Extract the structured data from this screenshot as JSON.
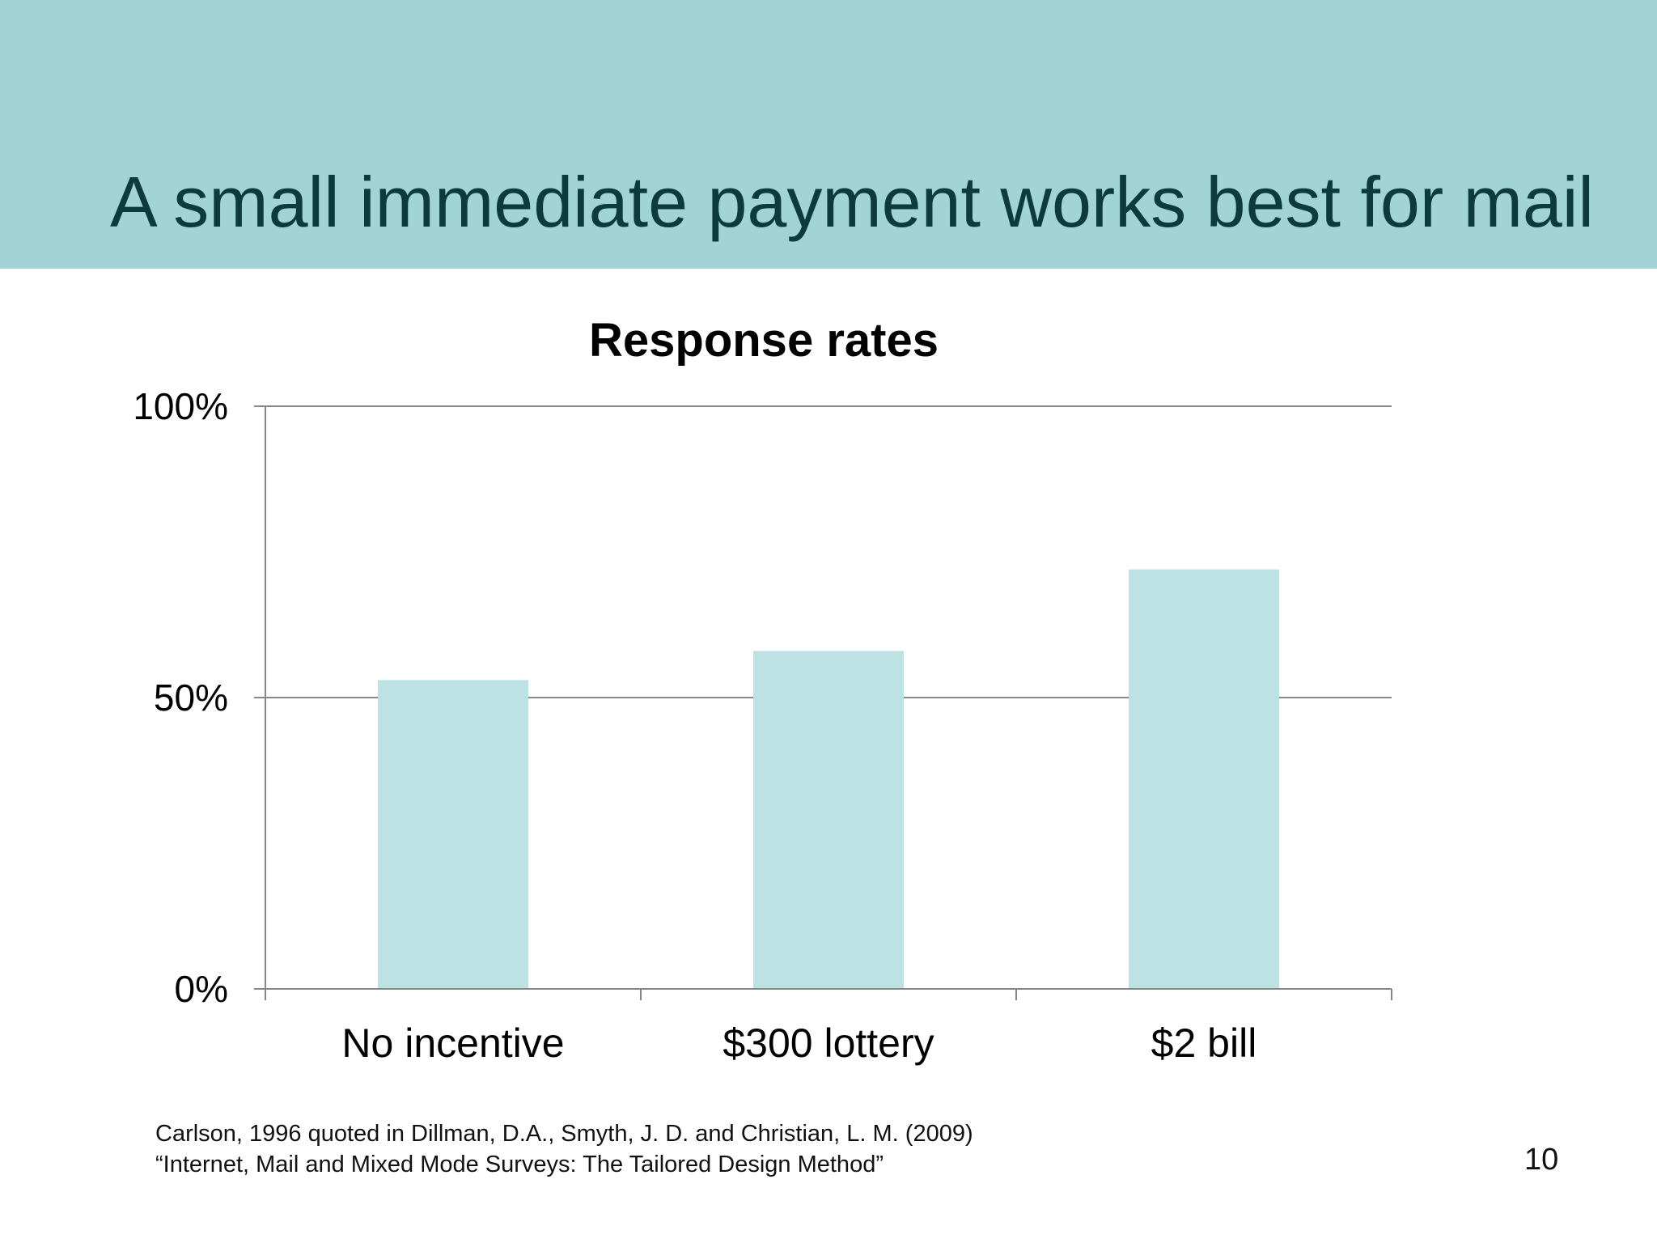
{
  "slide": {
    "title": "A small immediate payment works best for mail",
    "citation_line1": "Carlson, 1996 quoted in Dillman, D.A., Smyth, J. D. and Christian, L. M.  (2009)",
    "citation_line2": "“Internet, Mail and Mixed Mode Surveys: The Tailored Design Method”",
    "page_number": "10"
  },
  "colors": {
    "header_band": "#a2d3d6",
    "title_text": "#0c3a3e",
    "bar_fill": "#bde2e3",
    "gridline": "#888888"
  },
  "chart_data": {
    "type": "bar",
    "title": "Response rates",
    "categories": [
      "No incentive",
      "$300 lottery",
      "$2 bill"
    ],
    "values": [
      53,
      58,
      72
    ],
    "ylim": [
      0,
      100
    ],
    "yticks": [
      0,
      50,
      100
    ],
    "ytick_labels": [
      "0%",
      "50%",
      "100%"
    ],
    "grid": true,
    "legend": "none"
  }
}
